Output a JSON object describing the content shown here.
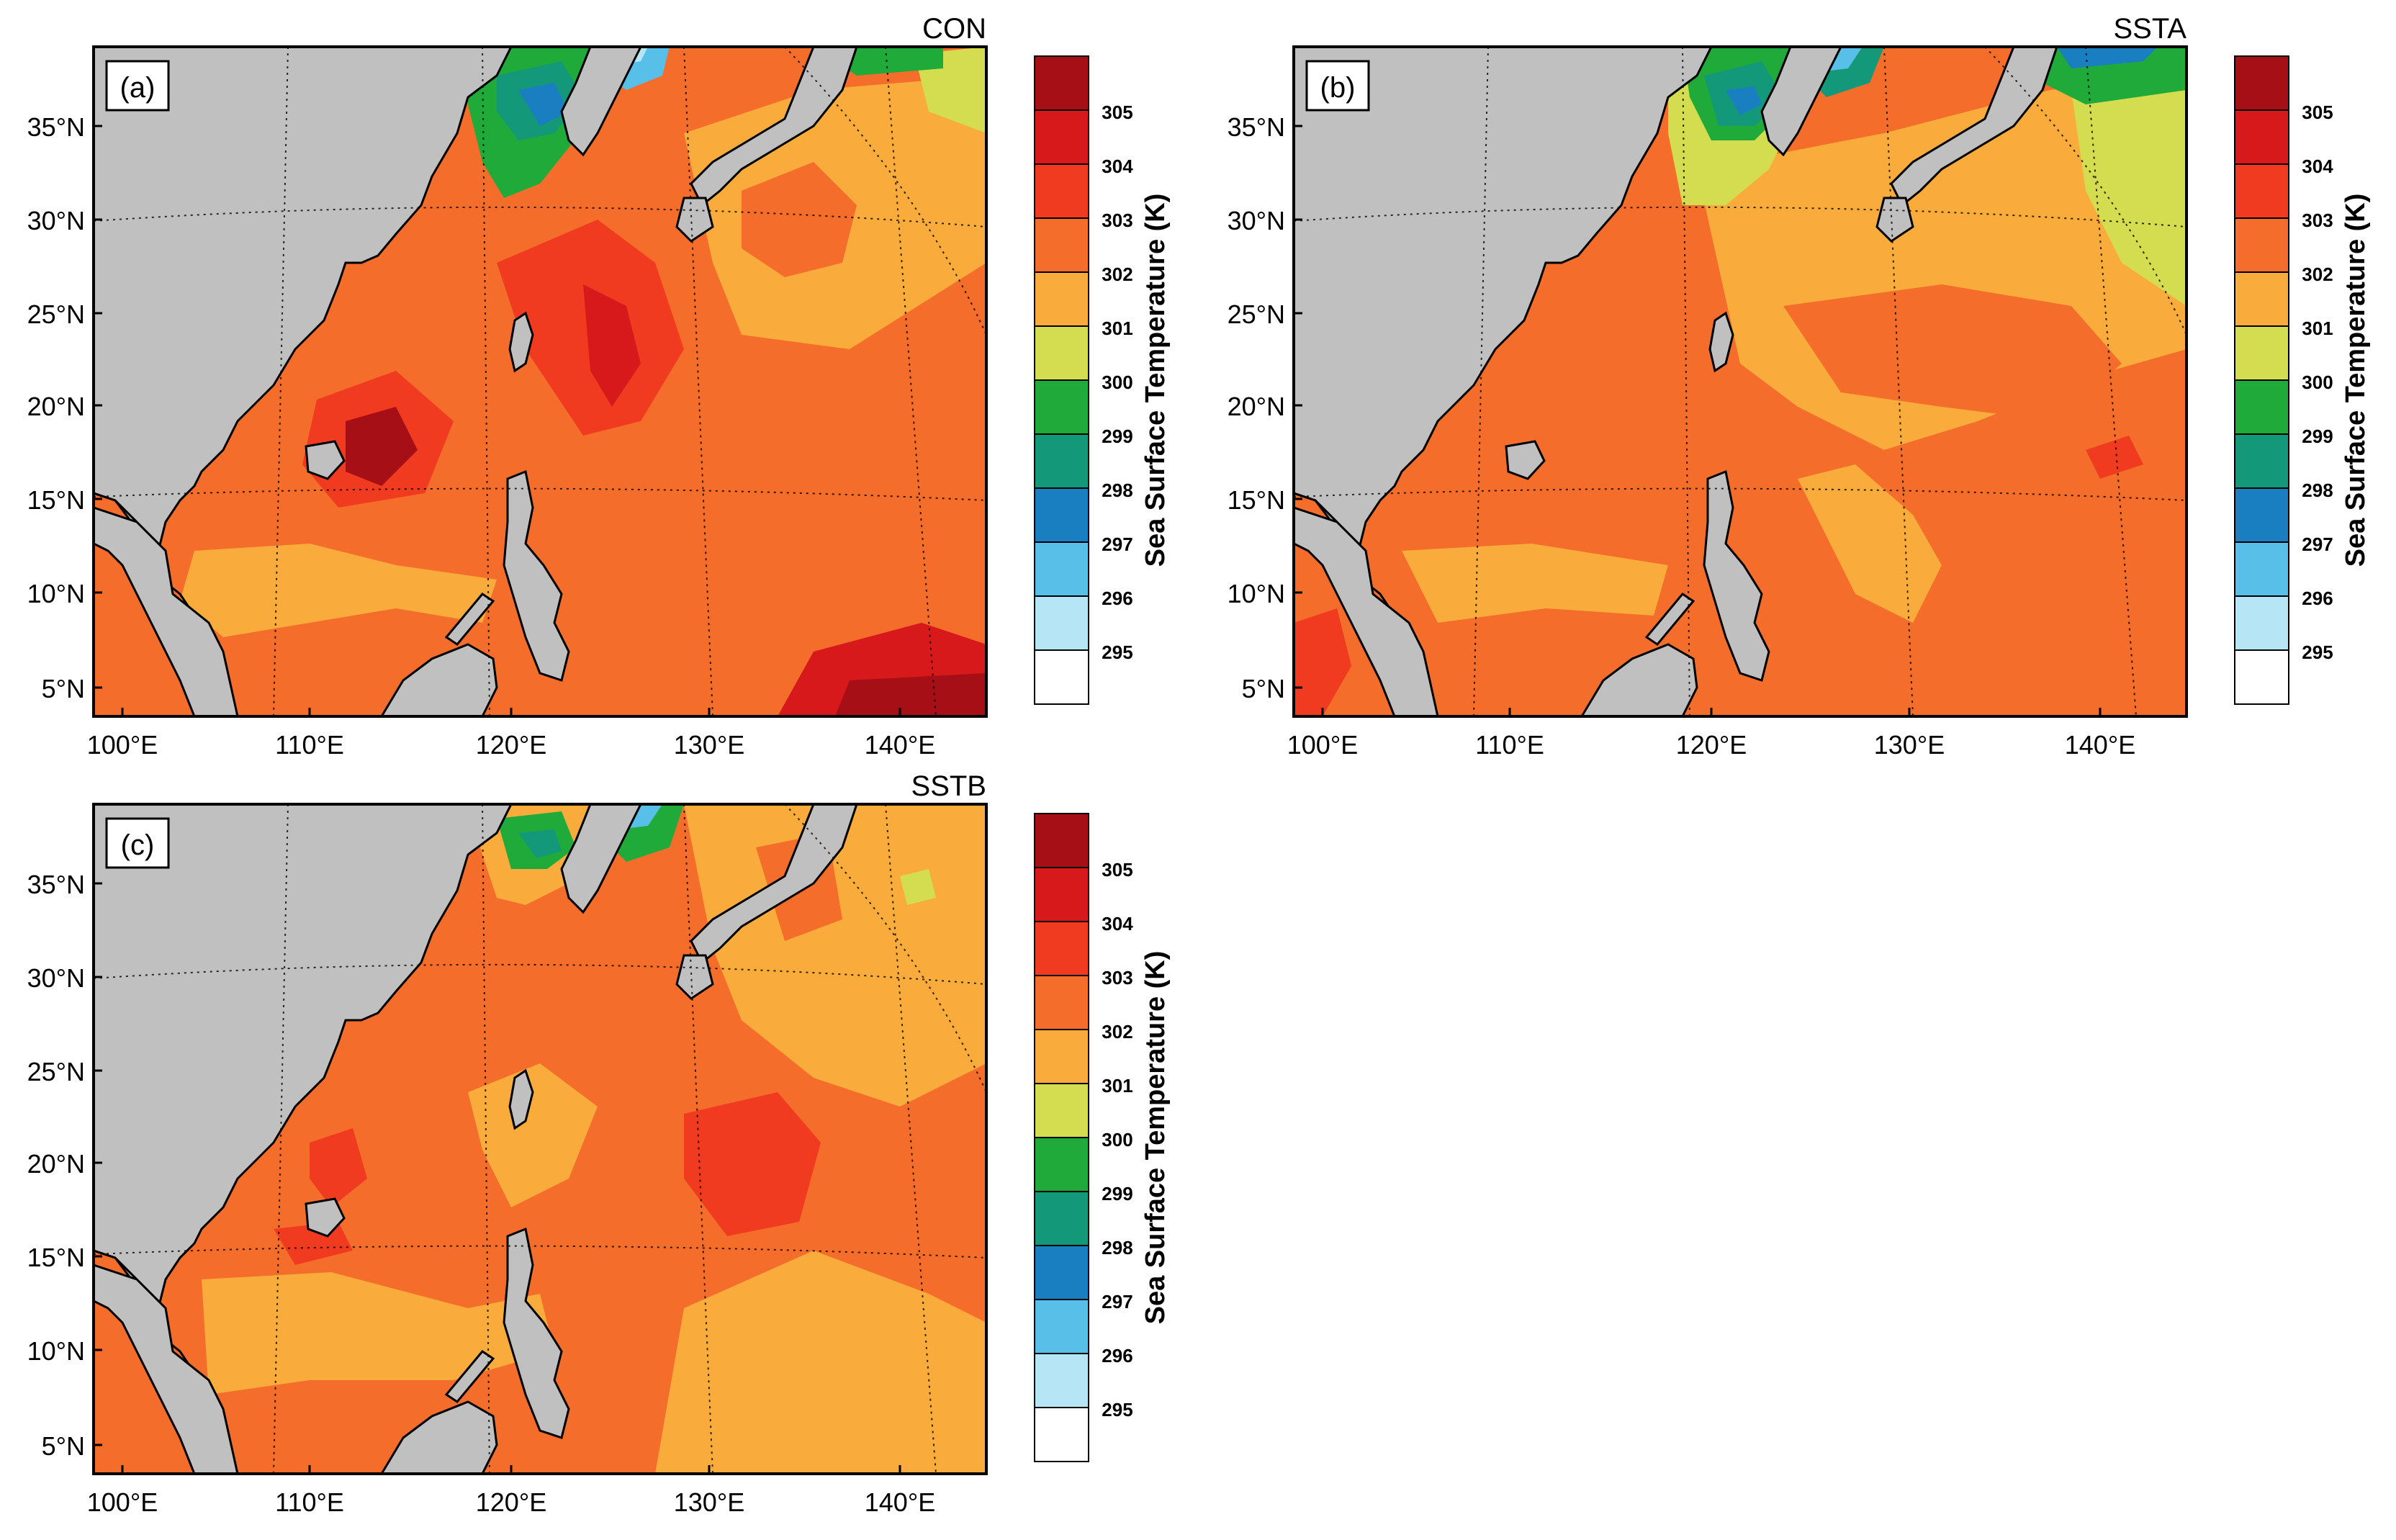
{
  "colorbar": {
    "title": "Sea Surface Temperature (K)",
    "levels": [
      {
        "label": "",
        "color": "#a50f15"
      },
      {
        "label": "305",
        "color": "#d7191c"
      },
      {
        "label": "304",
        "color": "#f03b20"
      },
      {
        "label": "303",
        "color": "#f46d2b"
      },
      {
        "label": "302",
        "color": "#f9ac3b"
      },
      {
        "label": "301",
        "color": "#d4dc4f"
      },
      {
        "label": "300",
        "color": "#1faa39"
      },
      {
        "label": "299",
        "color": "#13987a"
      },
      {
        "label": "298",
        "color": "#1a7fc1"
      },
      {
        "label": "297",
        "color": "#58bfe8"
      },
      {
        "label": "296",
        "color": "#b6e5f5"
      },
      {
        "label": "295",
        "color": "#ffffff"
      }
    ]
  },
  "axes": {
    "lat_labels": [
      "35°N",
      "30°N",
      "25°N",
      "20°N",
      "15°N",
      "10°N",
      "5°N"
    ],
    "lon_labels": [
      "100°E",
      "110°E",
      "120°E",
      "130°E",
      "140°E"
    ]
  },
  "panels": [
    {
      "label": "(a)",
      "title": "CON"
    },
    {
      "label": "(b)",
      "title": "SSTA"
    },
    {
      "label": "(c)",
      "title": "SSTB"
    }
  ],
  "colors": {
    "land": "#c0c0c0",
    "base_ocean": "#f46d2b"
  }
}
